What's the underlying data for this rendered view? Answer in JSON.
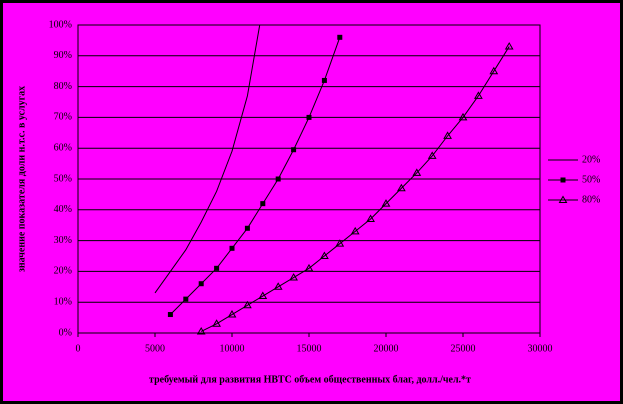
{
  "chart_data": {
    "type": "line",
    "y_label": "значение показателя доли н.т.с. в услугах",
    "x_label": "требуемый для развития НВТС объем общественных благ, долл./чел.*т",
    "xlim": [
      0,
      30000
    ],
    "xticks": [
      0,
      5000,
      10000,
      15000,
      20000,
      25000,
      30000
    ],
    "ylim": [
      0,
      100
    ],
    "yticks": [
      {
        "value": 0,
        "label": "0%"
      },
      {
        "value": 10,
        "label": "10%"
      },
      {
        "value": 20,
        "label": "20%"
      },
      {
        "value": 30,
        "label": "30%"
      },
      {
        "value": 40,
        "label": "40%"
      },
      {
        "value": 50,
        "label": "50%"
      },
      {
        "value": 60,
        "label": "60%"
      },
      {
        "value": 70,
        "label": "70%"
      },
      {
        "value": 80,
        "label": "80%"
      },
      {
        "value": 90,
        "label": "90%"
      },
      {
        "value": 100,
        "label": "100%"
      }
    ],
    "grid": true,
    "legend": "right",
    "series": [
      {
        "name": "20%",
        "color": "#000000",
        "marker": "none",
        "x": [
          5000,
          6000,
          7000,
          8000,
          9000,
          10000,
          11000,
          11800
        ],
        "values": [
          13,
          20,
          27,
          36,
          46,
          59,
          77,
          100
        ]
      },
      {
        "name": "50%",
        "color": "#000000",
        "marker": "square",
        "x": [
          6000,
          7000,
          8000,
          9000,
          10000,
          11000,
          12000,
          13000,
          14000,
          15000,
          16000,
          17000
        ],
        "values": [
          6,
          11,
          16,
          21,
          27.5,
          34,
          42,
          50,
          59.5,
          70,
          82,
          96
        ]
      },
      {
        "name": "80%",
        "color": "#000000",
        "marker": "triangle",
        "x": [
          8000,
          9000,
          10000,
          11000,
          12000,
          13000,
          14000,
          15000,
          16000,
          17000,
          18000,
          19000,
          20000,
          21000,
          22000,
          23000,
          24000,
          25000,
          26000,
          27000,
          28000
        ],
        "values": [
          0.5,
          3,
          6,
          9,
          12,
          15,
          18,
          21,
          25,
          29,
          33,
          37,
          42,
          47,
          52,
          57.5,
          64,
          70,
          77,
          85,
          93
        ]
      }
    ]
  }
}
